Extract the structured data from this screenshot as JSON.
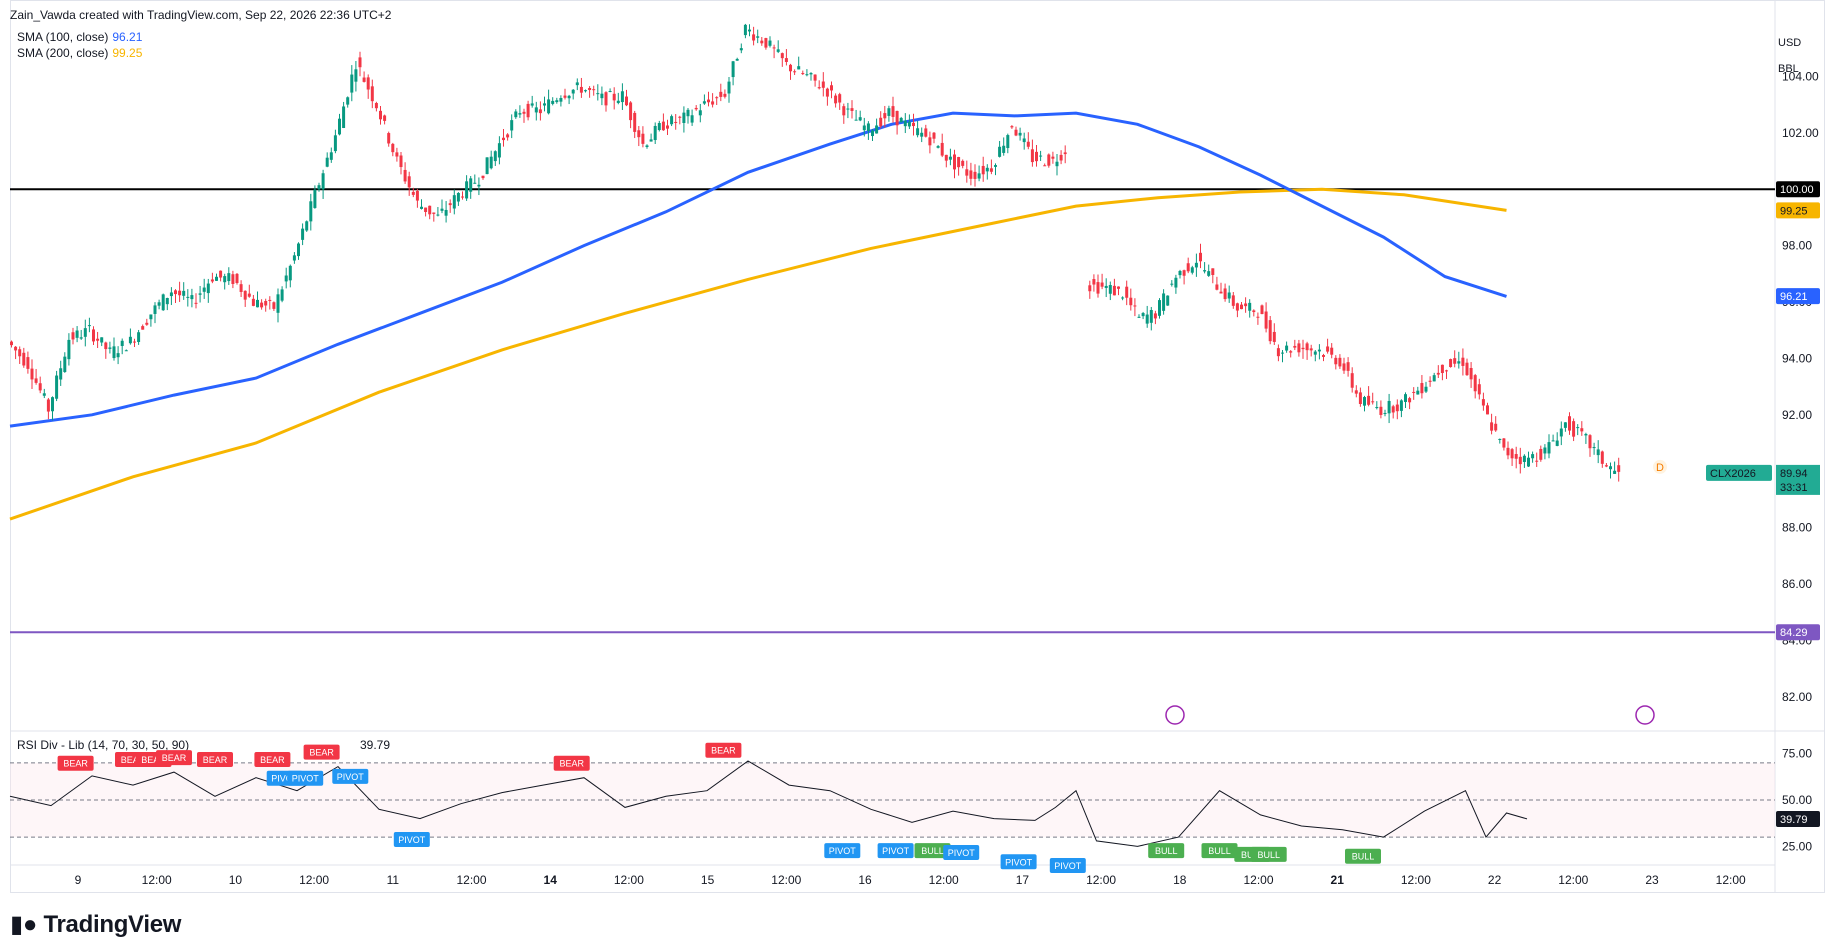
{
  "header": {
    "attribution": "Zain_Vawda created with TradingView.com, Sep 22, 2026 22:36 UTC+2",
    "sma100_label": "SMA (100, close)",
    "sma100_value": "96.21",
    "sma200_label": "SMA (200, close)",
    "sma200_value": "99.25",
    "currency": "USD",
    "unit": "BBL"
  },
  "brand": {
    "name": "TradingView"
  },
  "colors": {
    "up": "#089981",
    "down": "#f23645",
    "sma100": "#2962ff",
    "sma200": "#f7b500",
    "support": "#000000",
    "target": "#7e57c2",
    "rsi": "#131722",
    "pivot": "#2196f3",
    "bear": "#f23645",
    "bull": "#4caf50"
  },
  "chart_data": [
    {
      "type": "candlestick",
      "symbol_label": "CLX2026",
      "last_price": "89.94",
      "countdown": "33:31",
      "ylim": [
        81,
        106
      ],
      "y_ticks": [
        "82.00",
        "84.00",
        "86.00",
        "88.00",
        "90.00",
        "92.00",
        "94.00",
        "96.00",
        "98.00",
        "100.00",
        "102.00",
        "104.00"
      ],
      "x_ticks": [
        "9",
        "12:00",
        "10",
        "12:00",
        "11",
        "12:00",
        "14",
        "12:00",
        "15",
        "12:00",
        "16",
        "12:00",
        "17",
        "12:00",
        "18",
        "12:00",
        "21",
        "12:00",
        "22",
        "12:00",
        "23",
        "12:00"
      ],
      "horizontal_lines": [
        {
          "name": "support",
          "value": 100.0,
          "label": "100.00"
        },
        {
          "name": "target",
          "value": 84.29,
          "label": "84.29"
        }
      ],
      "sma100_label": "96.21",
      "sma200_label": "99.25",
      "segments": [
        {
          "name": "session-1",
          "path": [
            [
              0,
              94.6
            ],
            [
              5,
              93.8
            ],
            [
              10,
              92.2
            ],
            [
              15,
              94.7
            ],
            [
              20,
              95.0
            ],
            [
              25,
              94.2
            ],
            [
              30,
              94.6
            ],
            [
              35,
              95.6
            ],
            [
              40,
              96.4
            ],
            [
              45,
              96.0
            ],
            [
              50,
              96.9
            ],
            [
              55,
              96.8
            ],
            [
              60,
              96.0
            ],
            [
              65,
              95.8
            ],
            [
              70,
              97.6
            ],
            [
              75,
              99.8
            ],
            [
              80,
              101.9
            ],
            [
              85,
              104.5
            ],
            [
              90,
              103.0
            ],
            [
              95,
              101.0
            ],
            [
              100,
              99.5
            ],
            [
              105,
              99.0
            ],
            [
              110,
              99.8
            ],
            [
              115,
              100.4
            ],
            [
              120,
              101.6
            ],
            [
              125,
              102.8
            ],
            [
              130,
              102.8
            ],
            [
              135,
              103.4
            ],
            [
              140,
              103.6
            ],
            [
              145,
              103.2
            ],
            [
              150,
              103.3
            ],
            [
              155,
              101.6
            ],
            [
              160,
              102.3
            ],
            [
              165,
              102.5
            ],
            [
              170,
              103.0
            ],
            [
              175,
              103.4
            ],
            [
              180,
              105.7
            ],
            [
              185,
              105.2
            ],
            [
              190,
              104.4
            ],
            [
              195,
              104.0
            ],
            [
              200,
              103.5
            ],
            [
              205,
              102.7
            ],
            [
              210,
              102.1
            ],
            [
              215,
              102.7
            ],
            [
              220,
              102.2
            ],
            [
              225,
              101.8
            ],
            [
              230,
              101.0
            ],
            [
              235,
              100.5
            ],
            [
              240,
              100.8
            ],
            [
              245,
              102.3
            ],
            [
              250,
              101.1
            ],
            [
              255,
              101.0
            ],
            [
              258,
              101.4
            ]
          ]
        },
        {
          "name": "session-2",
          "path": [
            [
              263,
              96.6
            ],
            [
              268,
              96.5
            ],
            [
              272,
              96.3
            ],
            [
              276,
              95.4
            ],
            [
              280,
              95.6
            ],
            [
              285,
              96.9
            ],
            [
              290,
              97.5
            ],
            [
              295,
              96.6
            ],
            [
              300,
              95.8
            ],
            [
              305,
              95.7
            ],
            [
              310,
              94.3
            ],
            [
              315,
              94.4
            ],
            [
              320,
              94.3
            ],
            [
              325,
              93.9
            ],
            [
              330,
              92.5
            ],
            [
              335,
              92.2
            ],
            [
              340,
              92.4
            ],
            [
              345,
              93.0
            ],
            [
              350,
              93.7
            ],
            [
              355,
              93.9
            ],
            [
              360,
              92.2
            ],
            [
              365,
              90.7
            ],
            [
              370,
              90.4
            ],
            [
              375,
              90.7
            ],
            [
              380,
              91.7
            ],
            [
              385,
              91.1
            ],
            [
              390,
              90.2
            ],
            [
              393,
              89.9
            ]
          ]
        }
      ],
      "sma100": [
        [
          0,
          91.6
        ],
        [
          20,
          92.0
        ],
        [
          40,
          92.7
        ],
        [
          60,
          93.3
        ],
        [
          80,
          94.5
        ],
        [
          100,
          95.6
        ],
        [
          120,
          96.7
        ],
        [
          140,
          98.0
        ],
        [
          160,
          99.2
        ],
        [
          180,
          100.6
        ],
        [
          200,
          101.6
        ],
        [
          215,
          102.3
        ],
        [
          230,
          102.7
        ],
        [
          245,
          102.6
        ],
        [
          260,
          102.7
        ],
        [
          275,
          102.3
        ],
        [
          290,
          101.5
        ],
        [
          305,
          100.5
        ],
        [
          320,
          99.4
        ],
        [
          335,
          98.3
        ],
        [
          350,
          96.9
        ],
        [
          365,
          96.2
        ]
      ],
      "sma200": [
        [
          0,
          88.3
        ],
        [
          30,
          89.8
        ],
        [
          60,
          91.0
        ],
        [
          90,
          92.8
        ],
        [
          120,
          94.3
        ],
        [
          150,
          95.6
        ],
        [
          180,
          96.8
        ],
        [
          210,
          97.9
        ],
        [
          240,
          98.8
        ],
        [
          260,
          99.4
        ],
        [
          280,
          99.7
        ],
        [
          300,
          99.9
        ],
        [
          320,
          100.0
        ],
        [
          340,
          99.8
        ],
        [
          365,
          99.25
        ]
      ]
    },
    {
      "type": "line",
      "title": "RSI Div - Lib (14, 70, 30, 50, 90)",
      "value": "39.79",
      "ylim": [
        15,
        85
      ],
      "y_ticks": [
        "25.00",
        "50.00",
        "75.00"
      ],
      "bands": [
        70,
        50,
        30
      ],
      "series": [
        {
          "values": [
            [
              0,
              52
            ],
            [
              10,
              47
            ],
            [
              20,
              63
            ],
            [
              30,
              58
            ],
            [
              40,
              65
            ],
            [
              50,
              52
            ],
            [
              60,
              62
            ],
            [
              70,
              55
            ],
            [
              80,
              68
            ],
            [
              90,
              45
            ],
            [
              100,
              40
            ],
            [
              110,
              48
            ],
            [
              120,
              54
            ],
            [
              130,
              58
            ],
            [
              140,
              62
            ],
            [
              150,
              46
            ],
            [
              160,
              52
            ],
            [
              170,
              55
            ],
            [
              180,
              71
            ],
            [
              190,
              58
            ],
            [
              200,
              55
            ],
            [
              210,
              45
            ],
            [
              220,
              38
            ],
            [
              230,
              44
            ],
            [
              240,
              40
            ],
            [
              250,
              39
            ],
            [
              255,
              46
            ],
            [
              260,
              55
            ],
            [
              265,
              28
            ],
            [
              275,
              25
            ],
            [
              285,
              30
            ],
            [
              295,
              55
            ],
            [
              305,
              42
            ],
            [
              315,
              36
            ],
            [
              325,
              34
            ],
            [
              335,
              30
            ],
            [
              345,
              44
            ],
            [
              355,
              55
            ],
            [
              360,
              30
            ],
            [
              365,
              43
            ],
            [
              370,
              39.8
            ]
          ]
        }
      ],
      "markers": [
        {
          "label": "BEAR",
          "x": 16,
          "rsi": 62
        },
        {
          "label": "BEAR",
          "x": 30,
          "rsi": 64
        },
        {
          "label": "BEAR",
          "x": 35,
          "rsi": 64
        },
        {
          "label": "BEAR",
          "x": 40,
          "rsi": 65
        },
        {
          "label": "BEAR",
          "x": 50,
          "rsi": 64
        },
        {
          "label": "BEAR",
          "x": 64,
          "rsi": 64
        },
        {
          "label": "PIVOT",
          "x": 67,
          "rsi": 69
        },
        {
          "label": "PIVOT",
          "x": 72,
          "rsi": 69
        },
        {
          "label": "BEAR",
          "x": 76,
          "rsi": 68
        },
        {
          "label": "PIVOT",
          "x": 83,
          "rsi": 70
        },
        {
          "label": "PIVOT",
          "x": 98,
          "rsi": 36
        },
        {
          "label": "BEAR",
          "x": 137,
          "rsi": 62
        },
        {
          "label": "BEAR",
          "x": 174,
          "rsi": 69
        },
        {
          "label": "PIVOT",
          "x": 203,
          "rsi": 30
        },
        {
          "label": "PIVOT",
          "x": 216,
          "rsi": 30
        },
        {
          "label": "BULL",
          "x": 225,
          "rsi": 30
        },
        {
          "label": "PIVOT",
          "x": 232,
          "rsi": 29
        },
        {
          "label": "PIVOT",
          "x": 246,
          "rsi": 24
        },
        {
          "label": "PIVOT",
          "x": 258,
          "rsi": 22
        },
        {
          "label": "BULL",
          "x": 282,
          "rsi": 30
        },
        {
          "label": "BULL",
          "x": 295,
          "rsi": 30
        },
        {
          "label": "BULL",
          "x": 303,
          "rsi": 28
        },
        {
          "label": "BULL",
          "x": 307,
          "rsi": 28
        },
        {
          "label": "BULL",
          "x": 330,
          "rsi": 27
        }
      ]
    }
  ]
}
